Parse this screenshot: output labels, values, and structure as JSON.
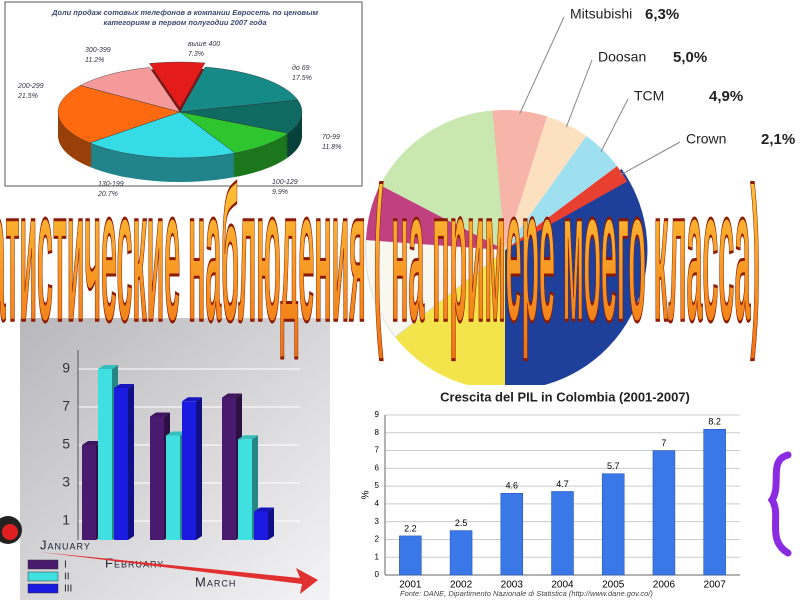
{
  "title": "Статистические  наблюдения ( на примере моего класса)",
  "chart_data": [
    {
      "type": "pie3d",
      "title": "Доли продаж сотовых телефонов в компании Евросеть по ценовым категориям в первом полугодии 2007 года",
      "categories": [
        "выше 400",
        "до 69",
        "70-99",
        "100-129",
        "130-199",
        "200-299",
        "300-399"
      ],
      "values": [
        7.3,
        17.5,
        11.8,
        9.9,
        20.7,
        21.5,
        11.2
      ],
      "value_labels": [
        "7.3%",
        "17.5%",
        "11.8%",
        "9.9%",
        "20.7%",
        "21.5%",
        "11.2%"
      ],
      "colors": [
        "#e41b1b",
        "#158a86",
        "#0f6b62",
        "#2ec62e",
        "#35dce6",
        "#ff6a10",
        "#f59a9a"
      ]
    },
    {
      "type": "pie",
      "categories": [
        "Mitsubishi",
        "Doosan",
        "TCM",
        "Crown"
      ],
      "values": [
        6.3,
        5.0,
        4.9,
        2.1
      ],
      "value_labels": [
        "6,3%",
        "5,0%",
        "4,9%",
        "2,1%"
      ],
      "colors": [
        "#f6b5a8",
        "#fde0c0",
        "#9fe0f0",
        "#e84030"
      ]
    },
    {
      "type": "bar3d",
      "categories": [
        "January",
        "February",
        "March"
      ],
      "series": [
        {
          "name": "I",
          "color": "#4a1a6e",
          "values": [
            5,
            6.5,
            7.5
          ]
        },
        {
          "name": "II",
          "color": "#40e0e0",
          "values": [
            9,
            5.5,
            5.3
          ]
        },
        {
          "name": "III",
          "color": "#1a1ae0",
          "values": [
            8,
            7.3,
            1.5
          ]
        }
      ],
      "ylim": [
        0,
        10
      ],
      "yticks": [
        1,
        3,
        5,
        7,
        9
      ],
      "grid": true
    },
    {
      "type": "bar",
      "title": "Crescita del PIL in Colombia (2001-2007)",
      "ylabel": "%",
      "categories": [
        "2001",
        "2002",
        "2003",
        "2004",
        "2005",
        "2006",
        "2007"
      ],
      "values": [
        2.2,
        2.5,
        4.6,
        4.7,
        5.7,
        7,
        8.2
      ],
      "color": "#3a78e8",
      "ylim": [
        0,
        9
      ],
      "yticks": [
        0,
        1,
        2,
        3,
        4,
        5,
        6,
        7,
        8,
        9
      ],
      "grid": true,
      "source": "Fonte: DANE, Dipartimento Nazionale di Statistica (http://www.dane.gov.co/)"
    }
  ]
}
